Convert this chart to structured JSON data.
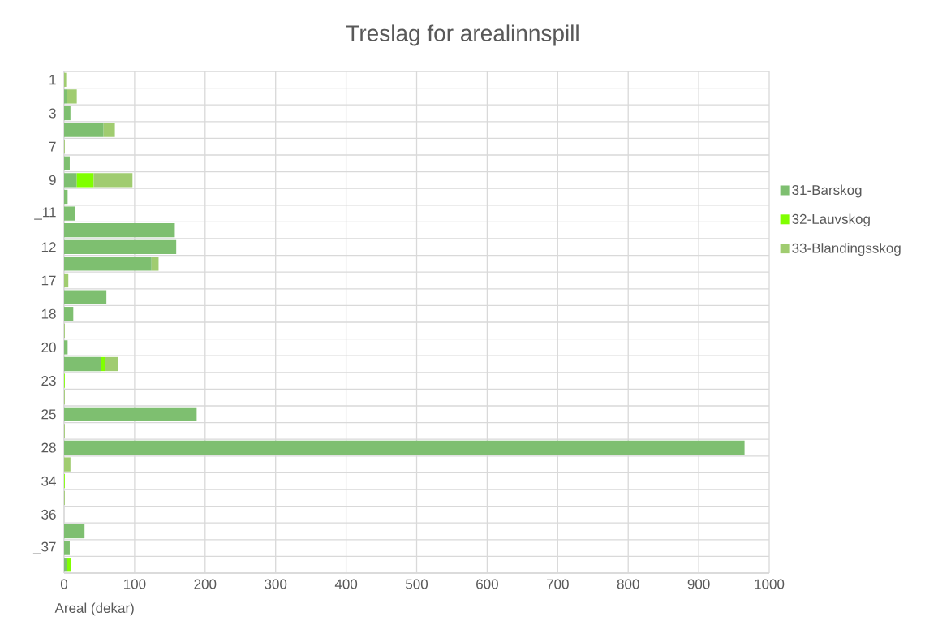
{
  "chart_data": {
    "type": "bar",
    "orientation": "horizontal",
    "stacked": true,
    "title": "Treslag for arealinnspill",
    "xlabel": "Areal (dekar)",
    "categories": [
      "1",
      null,
      "3",
      null,
      "7",
      null,
      "9",
      null,
      "_11",
      null,
      "12",
      null,
      "17",
      null,
      "18",
      null,
      "20",
      null,
      "23",
      null,
      "25",
      null,
      "28",
      null,
      "34",
      null,
      "36",
      null,
      "_37",
      null
    ],
    "series": [
      {
        "name": "31-Barskog",
        "color": "#7ebf70",
        "values": [
          null,
          4,
          9,
          56,
          null,
          8,
          18,
          5,
          15,
          157,
          159,
          124,
          null,
          60,
          13,
          null,
          5,
          52,
          null,
          null,
          188,
          null,
          965,
          null,
          null,
          null,
          null,
          29,
          8,
          4
        ]
      },
      {
        "name": "32-Lauvskog",
        "color": "#80ff00",
        "values": [
          null,
          null,
          null,
          null,
          null,
          null,
          24,
          null,
          null,
          null,
          null,
          null,
          null,
          null,
          null,
          null,
          null,
          6,
          1,
          null,
          null,
          null,
          null,
          null,
          1,
          null,
          null,
          null,
          null,
          6
        ]
      },
      {
        "name": "33-Blandingsskog",
        "color": "#a0cc70",
        "values": [
          3,
          14,
          null,
          16,
          1,
          null,
          55,
          null,
          null,
          null,
          null,
          10,
          6,
          null,
          null,
          1,
          null,
          19,
          null,
          1,
          null,
          1,
          null,
          9,
          null,
          1,
          null,
          null,
          null,
          null
        ]
      }
    ],
    "xlim": [
      0,
      1000
    ],
    "xticks": [
      0,
      100,
      200,
      300,
      400,
      500,
      600,
      700,
      800,
      900,
      1000
    ],
    "grid": true,
    "legend": "right"
  }
}
